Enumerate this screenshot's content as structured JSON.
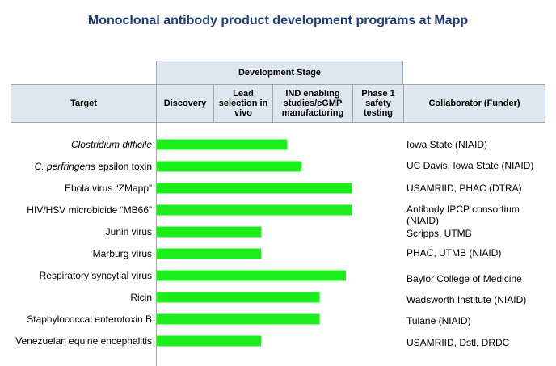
{
  "title": "Monoclonal antibody product development programs at Mapp",
  "header": {
    "development_stage": "Development Stage",
    "target": "Target",
    "collaborator": "Collaborator (Funder)",
    "stages": [
      "Discovery",
      "Lead selection in vivo",
      "IND enabling studies/cGMP manufacturing",
      "Phase 1 safety testing"
    ]
  },
  "chart_data": {
    "type": "bar",
    "orientation": "horizontal",
    "title": "Monoclonal antibody product development programs at Mapp",
    "x_unit": "development stage (0 = start of Discovery, 4 = end of Phase 1 safety testing)",
    "xlim": [
      0,
      4
    ],
    "bar_color": "#1cee1c",
    "rows": [
      {
        "target": "Clostridium difficile",
        "italic_part": "Clostridium difficile",
        "plain_part": "",
        "collaborator": "Iowa State (NIAID)",
        "value": 2.0
      },
      {
        "target": "C. perfringens epsilon toxin",
        "italic_part": "C. perfringens",
        "plain_part": " epsilon toxin",
        "collaborator": "UC Davis, Iowa State (NIAID)",
        "value": 2.22
      },
      {
        "target": "Ebola virus “ZMapp”",
        "italic_part": "",
        "plain_part": "Ebola virus “ZMapp”",
        "collaborator": "USAMRIID, PHAC (DTRA)",
        "value": 3.0
      },
      {
        "target": "HIV/HSV microbicide “MB66”",
        "italic_part": "",
        "plain_part": "HIV/HSV microbicide “MB66”",
        "collaborator": "Antibody IPCP consortium (NIAID)",
        "value": 3.0
      },
      {
        "target": "Junin virus",
        "italic_part": "",
        "plain_part": "Junin virus",
        "collaborator": "Scripps, UTMB",
        "value": 1.6
      },
      {
        "target": "Marburg virus",
        "italic_part": "",
        "plain_part": "Marburg virus",
        "collaborator": "PHAC, UTMB (NIAID)",
        "value": 1.6
      },
      {
        "target": "Respiratory syncytial virus",
        "italic_part": "",
        "plain_part": "Respiratory syncytial virus",
        "collaborator": "Baylor College of Medicine",
        "value": 2.9
      },
      {
        "target": "Ricin",
        "italic_part": "",
        "plain_part": "Ricin",
        "collaborator": "Wadsworth Institute (NIAID)",
        "value": 2.5
      },
      {
        "target": "Staphylococcal enterotoxin B",
        "italic_part": "",
        "plain_part": "Staphylococcal enterotoxin B",
        "collaborator": "Tulane (NIAID)",
        "value": 2.5
      },
      {
        "target": "Venezuelan equine encephalitis",
        "italic_part": "",
        "plain_part": "Venezuelan equine encephalitis",
        "collaborator": "USAMRIID, Dstl, DRDC",
        "value": 1.6
      }
    ]
  }
}
